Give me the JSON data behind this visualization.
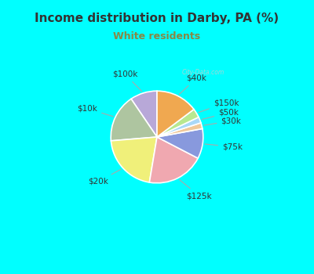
{
  "title": "Income distribution in Darby, PA (%)",
  "subtitle": "White residents",
  "outer_bg_color": "#00FFFF",
  "chart_bg_color": "#e8f5ee",
  "title_color": "#333333",
  "subtitle_color": "#888844",
  "slices": [
    {
      "label": "$100k",
      "value": 9,
      "color": "#b8a8d8"
    },
    {
      "label": "$10k",
      "value": 16,
      "color": "#aec5a0"
    },
    {
      "label": "$20k",
      "value": 20,
      "color": "#f0f07a"
    },
    {
      "label": "$125k",
      "value": 19,
      "color": "#f0a8b0"
    },
    {
      "label": "$75k",
      "value": 10,
      "color": "#8899dd"
    },
    {
      "label": "$30k",
      "value": 2,
      "color": "#f0c898"
    },
    {
      "label": "$50k",
      "value": 2,
      "color": "#a8d8f8"
    },
    {
      "label": "$150k",
      "value": 3,
      "color": "#b8e890"
    },
    {
      "label": "$40k",
      "value": 14,
      "color": "#f0a850"
    }
  ],
  "startangle": 90,
  "title_fontsize": 11,
  "subtitle_fontsize": 9,
  "label_fontsize": 7.5
}
